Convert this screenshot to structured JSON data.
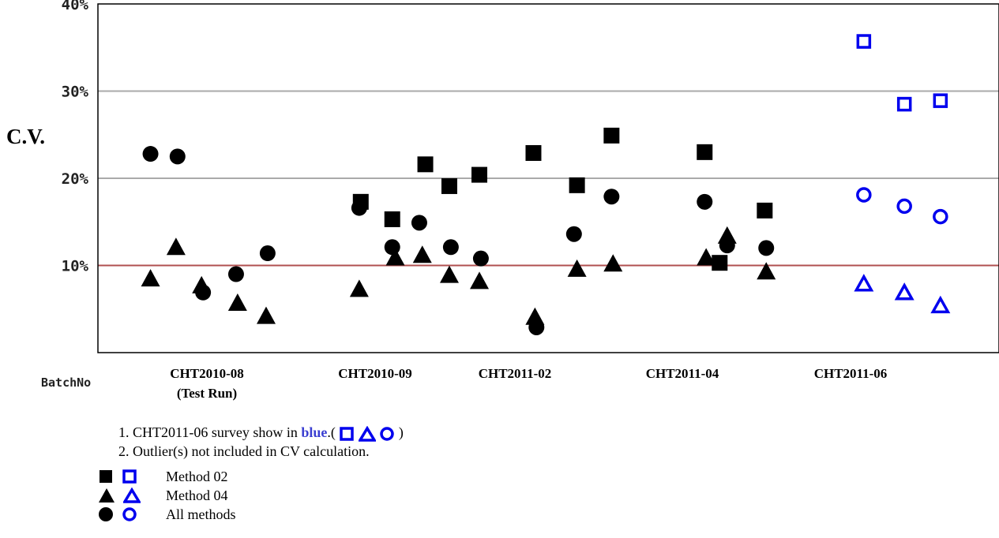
{
  "chart_data": {
    "type": "scatter",
    "ylabel": "C.V.",
    "xlabel": "BatchNo",
    "ylim": [
      0,
      40
    ],
    "yticks": [
      "10%",
      "20%",
      "30%",
      "40%"
    ],
    "reference_line": 10,
    "categories": [
      {
        "label": "CHT2010-08",
        "sublabel": "(Test Run)"
      },
      {
        "label": "CHT2010-09",
        "sublabel": ""
      },
      {
        "label": "CHT2011-02",
        "sublabel": ""
      },
      {
        "label": "CHT2011-04",
        "sublabel": ""
      },
      {
        "label": "CHT2011-06",
        "sublabel": ""
      }
    ],
    "colors": {
      "filled": "#000000",
      "highlight": "#0000ee",
      "reference": "#b05050",
      "grid": "#aaaaaa"
    },
    "series": [
      {
        "name": "Method 02",
        "marker": "square",
        "points": [
          {
            "cat": 1,
            "x": 1.75,
            "y": 17.3
          },
          {
            "cat": 1,
            "x": 1.96,
            "y": 15.3
          },
          {
            "cat": 1,
            "x": 2.18,
            "y": 21.6
          },
          {
            "cat": 1,
            "x": 2.34,
            "y": 19.1
          },
          {
            "cat": 1,
            "x": 2.54,
            "y": 20.4
          },
          {
            "cat": 2,
            "x": 2.9,
            "y": 22.9
          },
          {
            "cat": 2,
            "x": 3.19,
            "y": 19.2
          },
          {
            "cat": 2,
            "x": 3.42,
            "y": 24.9
          },
          {
            "cat": 3,
            "x": 4.04,
            "y": 23.0
          },
          {
            "cat": 3,
            "x": 4.14,
            "y": 10.3
          },
          {
            "cat": 3,
            "x": 4.44,
            "y": 16.3
          },
          {
            "cat": 4,
            "x": 5.1,
            "y": 35.7
          },
          {
            "cat": 4,
            "x": 5.37,
            "y": 28.5
          },
          {
            "cat": 4,
            "x": 5.61,
            "y": 28.9
          }
        ]
      },
      {
        "name": "Method 04",
        "marker": "triangle",
        "points": [
          {
            "cat": 0,
            "x": 0.35,
            "y": 8.5
          },
          {
            "cat": 0,
            "x": 0.52,
            "y": 12.1
          },
          {
            "cat": 0,
            "x": 0.69,
            "y": 7.7
          },
          {
            "cat": 0,
            "x": 0.93,
            "y": 5.7
          },
          {
            "cat": 0,
            "x": 1.12,
            "y": 4.2
          },
          {
            "cat": 1,
            "x": 1.74,
            "y": 7.3
          },
          {
            "cat": 1,
            "x": 1.98,
            "y": 10.9
          },
          {
            "cat": 1,
            "x": 2.16,
            "y": 11.2
          },
          {
            "cat": 1,
            "x": 2.34,
            "y": 8.9
          },
          {
            "cat": 1,
            "x": 2.54,
            "y": 8.2
          },
          {
            "cat": 2,
            "x": 2.91,
            "y": 4.1
          },
          {
            "cat": 2,
            "x": 3.19,
            "y": 9.6
          },
          {
            "cat": 2,
            "x": 3.43,
            "y": 10.2
          },
          {
            "cat": 3,
            "x": 4.05,
            "y": 10.9
          },
          {
            "cat": 3,
            "x": 4.19,
            "y": 13.4
          },
          {
            "cat": 3,
            "x": 4.45,
            "y": 9.3
          },
          {
            "cat": 4,
            "x": 5.1,
            "y": 7.9
          },
          {
            "cat": 4,
            "x": 5.37,
            "y": 6.9
          },
          {
            "cat": 4,
            "x": 5.61,
            "y": 5.4
          }
        ]
      },
      {
        "name": "All methods",
        "marker": "circle",
        "points": [
          {
            "cat": 0,
            "x": 0.35,
            "y": 22.8
          },
          {
            "cat": 0,
            "x": 0.53,
            "y": 22.5
          },
          {
            "cat": 0,
            "x": 0.7,
            "y": 6.9
          },
          {
            "cat": 0,
            "x": 0.92,
            "y": 9.0
          },
          {
            "cat": 0,
            "x": 1.13,
            "y": 11.4
          },
          {
            "cat": 1,
            "x": 1.74,
            "y": 16.6
          },
          {
            "cat": 1,
            "x": 1.96,
            "y": 12.1
          },
          {
            "cat": 1,
            "x": 2.14,
            "y": 14.9
          },
          {
            "cat": 1,
            "x": 2.35,
            "y": 12.1
          },
          {
            "cat": 1,
            "x": 2.55,
            "y": 10.8
          },
          {
            "cat": 2,
            "x": 2.92,
            "y": 2.9
          },
          {
            "cat": 2,
            "x": 3.17,
            "y": 13.6
          },
          {
            "cat": 2,
            "x": 3.42,
            "y": 17.9
          },
          {
            "cat": 3,
            "x": 4.04,
            "y": 17.3
          },
          {
            "cat": 3,
            "x": 4.19,
            "y": 12.3
          },
          {
            "cat": 3,
            "x": 4.45,
            "y": 12.0
          },
          {
            "cat": 4,
            "x": 5.1,
            "y": 18.1
          },
          {
            "cat": 4,
            "x": 5.37,
            "y": 16.8
          },
          {
            "cat": 4,
            "x": 5.61,
            "y": 15.6
          }
        ]
      }
    ]
  },
  "notes": {
    "line1_prefix": "1. CHT2011-06 survey show in ",
    "line1_blue": "blue",
    "line1_after": ".(",
    "line1_close": ")",
    "line2": "2. Outlier(s) not included in CV calculation."
  },
  "legend": [
    {
      "label": "Method 02",
      "marker": "square"
    },
    {
      "label": "Method 04",
      "marker": "triangle"
    },
    {
      "label": "All methods",
      "marker": "circle"
    }
  ]
}
